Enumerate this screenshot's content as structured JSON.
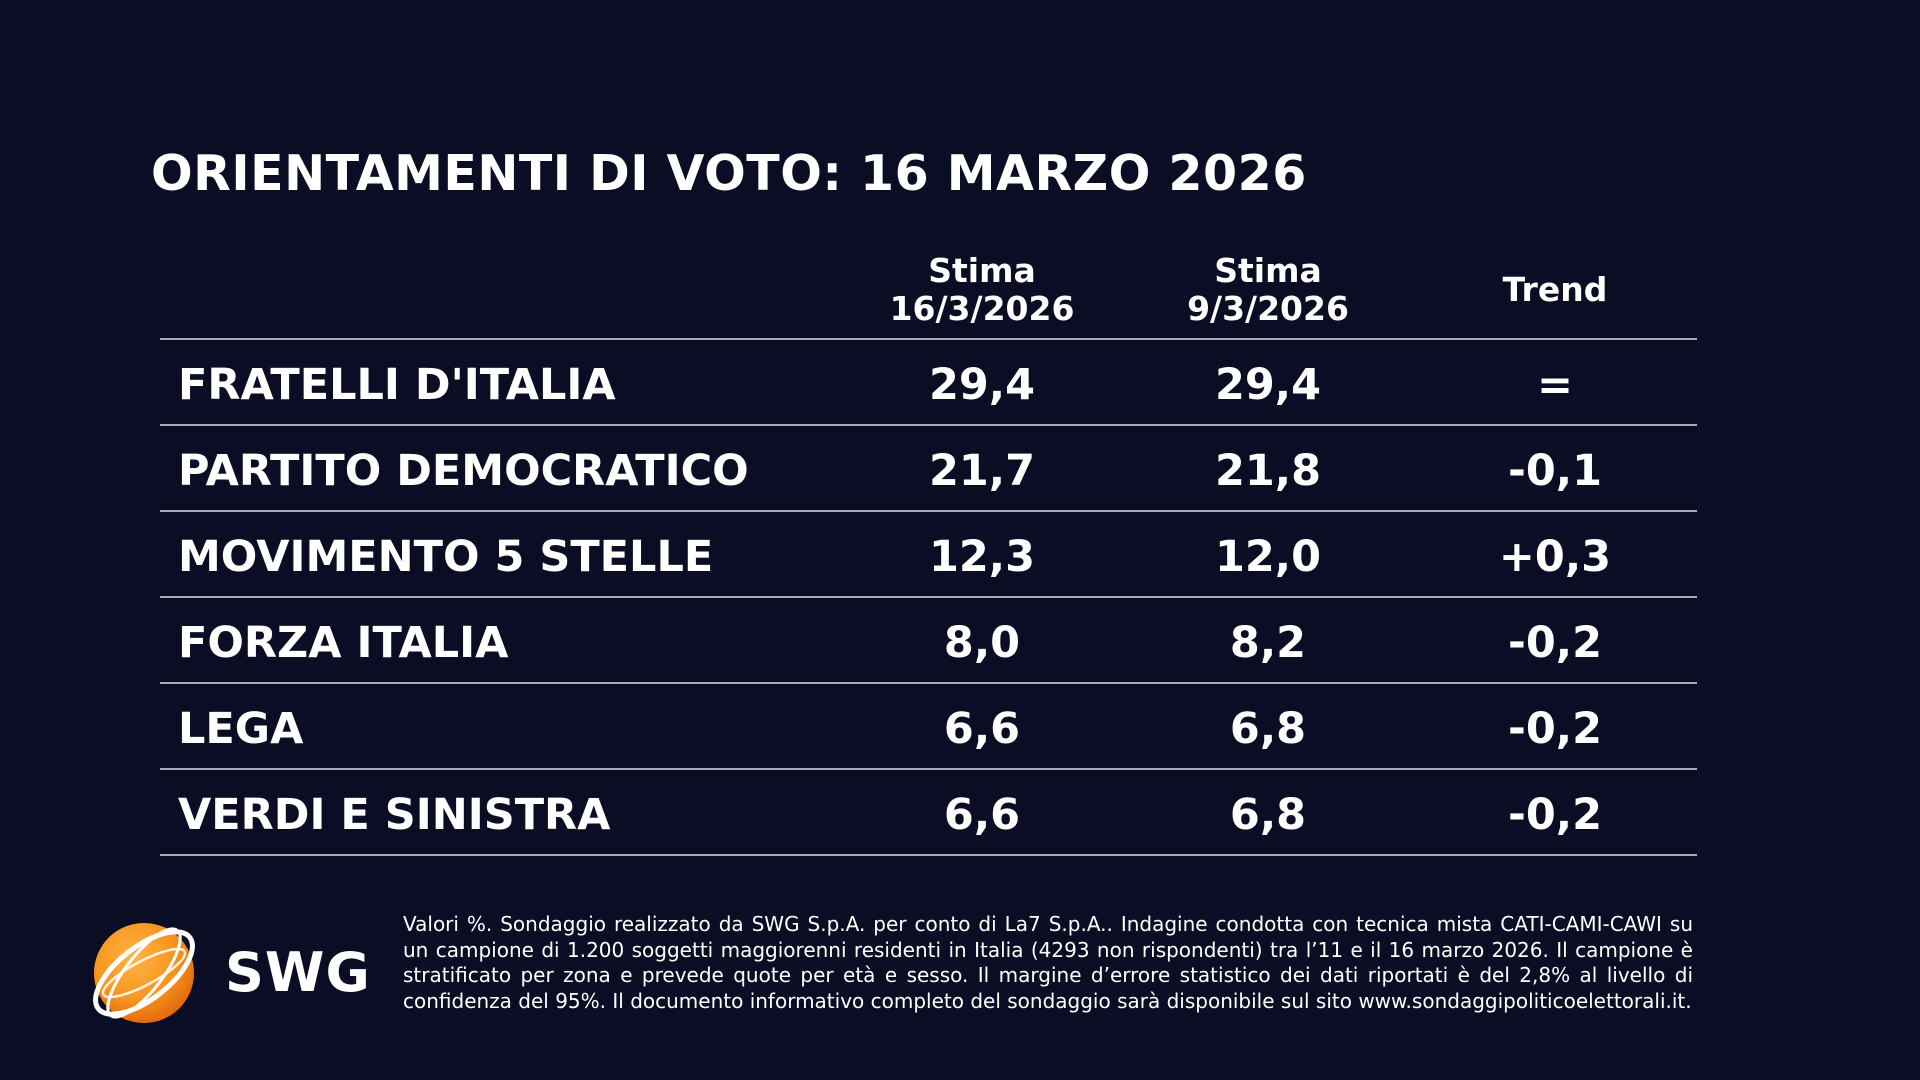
{
  "title": "ORIENTAMENTI DI VOTO: 16 MARZO 2026",
  "chart_data": {
    "type": "table",
    "columns": [
      {
        "line1": "Stima",
        "line2": "16/3/2026"
      },
      {
        "line1": "Stima",
        "line2": "9/3/2026"
      },
      {
        "line1": "Trend",
        "line2": ""
      }
    ],
    "rows": [
      {
        "party": "FRATELLI D'ITALIA",
        "stima_16": "29,4",
        "stima_9": "29,4",
        "trend": "="
      },
      {
        "party": "PARTITO DEMOCRATICO",
        "stima_16": "21,7",
        "stima_9": "21,8",
        "trend": "-0,1"
      },
      {
        "party": "MOVIMENTO 5 STELLE",
        "stima_16": "12,3",
        "stima_9": "12,0",
        "trend": "+0,3"
      },
      {
        "party": "FORZA ITALIA",
        "stima_16": "8,0",
        "stima_9": "8,2",
        "trend": "-0,2"
      },
      {
        "party": "LEGA",
        "stima_16": "6,6",
        "stima_9": "6,8",
        "trend": "-0,2"
      },
      {
        "party": "VERDI E SINISTRA",
        "stima_16": "6,6",
        "stima_9": "6,8",
        "trend": "-0,2"
      }
    ]
  },
  "logo": {
    "text": "SWG",
    "icon": "globe-icon",
    "colors": {
      "sphere": "#f7941d",
      "ring": "#ffffff"
    }
  },
  "footnote": "Valori %. Sondaggio realizzato da SWG S.p.A. per conto di La7 S.p.A.. Indagine condotta con tecnica mista CATI-CAMI-CAWI su un campione di 1.200 soggetti maggiorenni residenti in Italia (4293 non rispondenti) tra l’11 e il 16 marzo 2026. Il campione è stratificato per zona e prevede quote per età e sesso. Il margine d’errore statistico dei dati riportati è del 2,8% al livello di confidenza del 95%. Il documento informativo completo del sondaggio sarà disponibile sul sito www.sondaggipoliticoelettorali.it.",
  "colors": {
    "background": "#0b0d24",
    "text": "#ffffff",
    "rule": "#a9abb7"
  }
}
